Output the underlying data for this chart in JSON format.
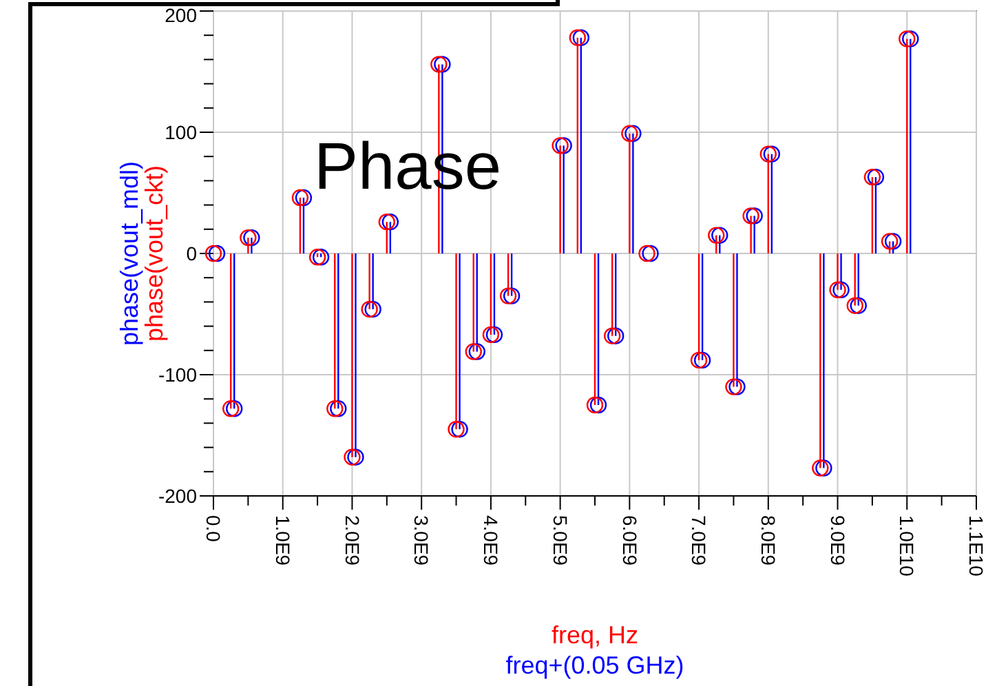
{
  "chart_data": {
    "type": "lollipop",
    "title": "Phase",
    "xlabel": "freq, Hz",
    "annotations": [
      "freq+(0.05 GHz)"
    ],
    "legend": "left",
    "marker": "circle",
    "grid": true,
    "xlim": [
      0,
      11000000000
    ],
    "xticks": [
      {
        "value": 0,
        "label": "0.0"
      },
      {
        "value": 500000000,
        "label": null
      },
      {
        "value": 1000000000,
        "label": "1.0E9"
      },
      {
        "value": 1500000000,
        "label": null
      },
      {
        "value": 2000000000,
        "label": "2.0E9"
      },
      {
        "value": 2500000000,
        "label": null
      },
      {
        "value": 3000000000,
        "label": "3.0E9"
      },
      {
        "value": 3500000000,
        "label": null
      },
      {
        "value": 4000000000,
        "label": "4.0E9"
      },
      {
        "value": 4500000000,
        "label": null
      },
      {
        "value": 5000000000,
        "label": "5.0E9"
      },
      {
        "value": 5500000000,
        "label": null
      },
      {
        "value": 6000000000,
        "label": "6.0E9"
      },
      {
        "value": 6500000000,
        "label": null
      },
      {
        "value": 7000000000,
        "label": "7.0E9"
      },
      {
        "value": 7500000000,
        "label": null
      },
      {
        "value": 8000000000,
        "label": "8.0E9"
      },
      {
        "value": 8500000000,
        "label": null
      },
      {
        "value": 9000000000,
        "label": "9.0E9"
      },
      {
        "value": 9500000000,
        "label": null
      },
      {
        "value": 10000000000,
        "label": "1.0E10"
      },
      {
        "value": 10500000000,
        "label": null
      },
      {
        "value": 11000000000,
        "label": "1.1E10"
      }
    ],
    "ylim": [
      -200,
      200
    ],
    "yticks": [
      -200,
      {
        "value": -180,
        "label": null
      },
      {
        "value": -160,
        "label": null
      },
      {
        "value": -140,
        "label": null
      },
      {
        "value": -120,
        "label": null
      },
      -100,
      {
        "value": -80,
        "label": null
      },
      {
        "value": -60,
        "label": null
      },
      {
        "value": -40,
        "label": null
      },
      {
        "value": -20,
        "label": null
      },
      0,
      {
        "value": 20,
        "label": null
      },
      {
        "value": 40,
        "label": null
      },
      {
        "value": 60,
        "label": null
      },
      {
        "value": 80,
        "label": null
      },
      100,
      {
        "value": 120,
        "label": null
      },
      {
        "value": 140,
        "label": null
      },
      {
        "value": 160,
        "label": null
      },
      {
        "value": 180,
        "label": null
      },
      200
    ],
    "series": [
      {
        "name": "phase(vout_mdl)",
        "color": "#0000ff",
        "x": [
          50000000,
          300000000,
          550000000,
          1300000000,
          1550000000,
          1800000000,
          2050000000,
          2300000000,
          2550000000,
          3300000000,
          3550000000,
          3800000000,
          4050000000,
          4300000000,
          5050000000,
          5300000000,
          5550000000,
          5800000000,
          6050000000,
          6300000000,
          7050000000,
          7300000000,
          7550000000,
          7800000000,
          8050000000,
          8800000000,
          9050000000,
          9300000000,
          9550000000,
          9800000000,
          10050000000
        ],
        "values": [
          0,
          -128,
          13,
          46,
          -3,
          -128,
          -168,
          -46,
          26,
          156,
          -145,
          -81,
          -67,
          -35,
          89,
          178,
          -125,
          -68,
          99,
          0,
          -88,
          15,
          -110,
          31,
          82,
          -177,
          -30,
          -43,
          63,
          10,
          177
        ]
      },
      {
        "name": "phase(vout_ckt)",
        "color": "#ff0000",
        "x": [
          0,
          250000000,
          500000000,
          1250000000,
          1500000000,
          1750000000,
          2000000000,
          2250000000,
          2500000000,
          3250000000,
          3500000000,
          3750000000,
          4000000000,
          4250000000,
          5000000000,
          5250000000,
          5500000000,
          5750000000,
          6000000000,
          6250000000,
          7000000000,
          7250000000,
          7500000000,
          7750000000,
          8000000000,
          8750000000,
          9000000000,
          9250000000,
          9500000000,
          9750000000,
          10000000000
        ],
        "values": [
          0,
          -128,
          13,
          46,
          -3,
          -128,
          -168,
          -46,
          26,
          156,
          -145,
          -81,
          -67,
          -35,
          89,
          178,
          -125,
          -68,
          99,
          0,
          -88,
          15,
          -110,
          31,
          82,
          -177,
          -30,
          -43,
          63,
          10,
          177
        ]
      }
    ]
  }
}
